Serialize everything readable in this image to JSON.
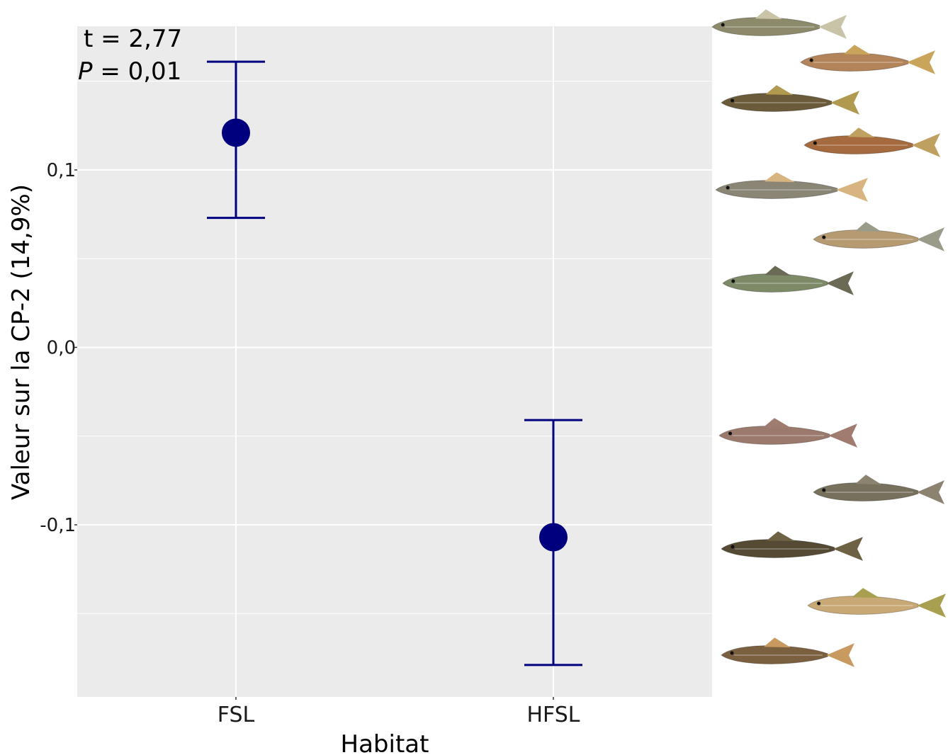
{
  "chart_data": {
    "type": "scatter",
    "title": "",
    "xlabel": "Habitat",
    "ylabel": "Valeur sur la CP-2 (14,9%)",
    "categories": [
      "FSL",
      "HFSL"
    ],
    "series": [
      {
        "points": [
          {
            "x": "FSL",
            "y": 0.121,
            "ymin": 0.073,
            "ymax": 0.161
          },
          {
            "x": "HFSL",
            "y": -0.107,
            "ymin": -0.179,
            "ymax": -0.041
          }
        ]
      }
    ],
    "y_ticks": [
      {
        "value": 0.1,
        "label": "0,1"
      },
      {
        "value": 0.0,
        "label": "0,0"
      },
      {
        "value": -0.1,
        "label": "-0,1"
      }
    ],
    "y_minor_gridlines": [
      0.05,
      -0.05,
      -0.15,
      0.15
    ],
    "ylim": [
      -0.197,
      0.181
    ],
    "grid": true,
    "panel_background": "#ebebeb",
    "grid_color": "#ffffff",
    "point_color": "#00007f",
    "errorbar_color": "#00007f",
    "annotation": {
      "t_text": "t = 2,77",
      "p_letter": "P",
      "p_rest": " = 0,01"
    }
  },
  "fish_images": [
    {
      "name": "sculpin-fish-1",
      "body": "#8d8a6c",
      "fin": "#c9c4a8"
    },
    {
      "name": "dace-fish-1",
      "body": "#b3835a",
      "fin": "#c8a55a"
    },
    {
      "name": "sculpin-fish-2",
      "body": "#6b5b3a",
      "fin": "#b09a50"
    },
    {
      "name": "stickleback-fish",
      "body": "#a56a3e",
      "fin": "#c0a060"
    },
    {
      "name": "fallfish-fish",
      "body": "#8b8576",
      "fin": "#d8b480"
    },
    {
      "name": "minnow-fish",
      "body": "#b59a72",
      "fin": "#9b9b8a"
    },
    {
      "name": "brook-trout-fish",
      "body": "#7d8a68",
      "fin": "#6b6a55"
    },
    {
      "name": "sucker-fish",
      "body": "#9b7a6d",
      "fin": "#a07b70"
    },
    {
      "name": "goby-fish",
      "body": "#77705c",
      "fin": "#8b8270"
    },
    {
      "name": "mottled-sculpin-fish",
      "body": "#554a34",
      "fin": "#6e6244"
    },
    {
      "name": "darter-fish",
      "body": "#c8a875",
      "fin": "#a8a050"
    },
    {
      "name": "longnose-dace-fish",
      "body": "#7b6040",
      "fin": "#c89a60"
    }
  ]
}
